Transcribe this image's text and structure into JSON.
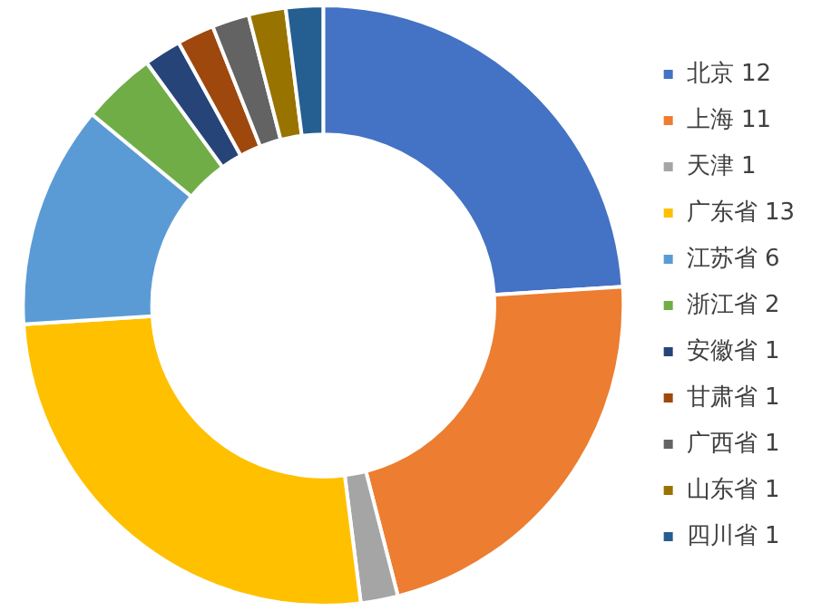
{
  "chart_data": {
    "type": "donut",
    "categories": [
      "北京 12",
      "上海 11",
      "天津 1",
      "广东省 13",
      "江苏省 6",
      "浙江省 2",
      "安徽省 1",
      "甘肃省 1",
      "广西省 1",
      "山东省 1",
      "四川省 1"
    ],
    "values": [
      12,
      11,
      1,
      13,
      6,
      2,
      1,
      1,
      1,
      1,
      1
    ],
    "colors": [
      "#4472c4",
      "#ed7d31",
      "#a5a5a5",
      "#ffc000",
      "#5b9bd5",
      "#70ad47",
      "#264478",
      "#9e480e",
      "#636363",
      "#997300",
      "#255e91"
    ],
    "legend": "right"
  }
}
